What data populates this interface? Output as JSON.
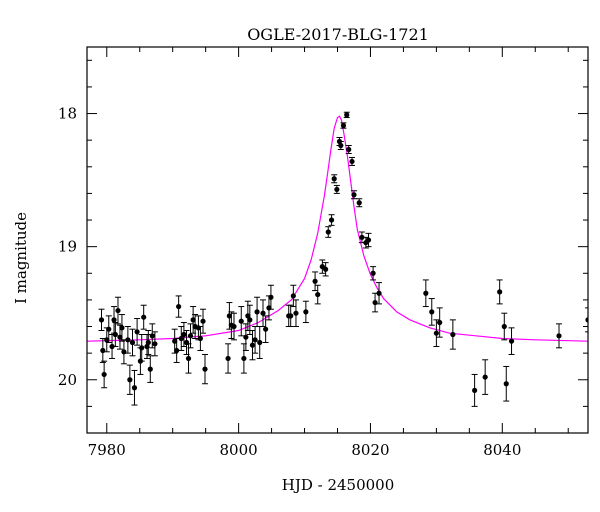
{
  "chart_data": {
    "type": "scatter",
    "title": "OGLE-2017-BLG-1721",
    "xlabel": "HJD - 2450000",
    "ylabel": "I magnitude",
    "xlim": [
      7977,
      8053
    ],
    "ylim": [
      20.4,
      17.5
    ],
    "y_inverted": true,
    "x_ticks": [
      7980,
      8000,
      8020,
      8040
    ],
    "y_ticks": [
      18,
      19,
      20
    ],
    "grid": false,
    "legend": "none",
    "colors": {
      "points": "#000000",
      "model": "#ff00ff",
      "frame": "#000000"
    },
    "series": [
      {
        "kind": "data",
        "x": [
          7979.2,
          7979.4,
          7979.6,
          7980.0,
          7980.3,
          7980.8,
          7981.1,
          7981.3,
          7981.7,
          7982.0,
          7982.3,
          7982.6,
          7983.2,
          7983.5,
          7983.9,
          7984.2,
          7984.6,
          7985.1,
          7985.3,
          7985.6,
          7986.1,
          7986.3,
          7986.6,
          7986.9,
          7987.3,
          7990.3,
          7990.6,
          7990.9,
          7991.3,
          7991.7,
          7992.1,
          7992.4,
          7992.7,
          7993.1,
          7993.4,
          7993.9,
          7994.2,
          7994.6,
          7994.9,
          7998.4,
          7998.6,
          7998.9,
          7999.3,
          8000.4,
          8000.8,
          8001.1,
          8001.4,
          8001.7,
          8002.1,
          8002.5,
          8002.8,
          8003.2,
          8003.7,
          8004.1,
          8004.6,
          8004.9,
          8007.6,
          8007.9,
          8008.3,
          8008.7,
          8010.2,
          8011.6,
          8012.0,
          8012.7,
          8013.2,
          8013.6,
          8014.1,
          8014.5,
          8014.9,
          8015.3,
          8015.5,
          8015.9,
          8016.4,
          8016.7,
          8017.2,
          8017.5,
          8018.3,
          8018.7,
          8019.3,
          8019.7,
          8020.4,
          8020.7,
          8021.3,
          8028.4,
          8029.3,
          8030.0,
          8030.5,
          8032.5,
          8035.8,
          8037.4,
          8039.6,
          8040.3,
          8040.6,
          8041.4,
          8048.6,
          8053.0
        ],
        "y": [
          19.55,
          19.78,
          19.96,
          19.7,
          19.62,
          19.75,
          19.55,
          19.66,
          19.48,
          19.68,
          19.61,
          19.79,
          19.7,
          20.0,
          19.72,
          20.06,
          19.64,
          19.86,
          19.76,
          19.53,
          19.75,
          19.72,
          19.92,
          19.67,
          19.73,
          19.71,
          19.78,
          19.45,
          19.69,
          19.66,
          19.72,
          19.84,
          19.67,
          19.55,
          19.6,
          19.61,
          19.69,
          19.56,
          19.92,
          19.84,
          19.52,
          19.59,
          19.6,
          19.56,
          19.84,
          19.68,
          19.52,
          19.55,
          19.74,
          19.7,
          19.49,
          19.72,
          19.5,
          19.62,
          19.46,
          19.38,
          19.52,
          19.52,
          19.37,
          19.5,
          19.49,
          19.26,
          19.36,
          19.15,
          19.17,
          18.89,
          18.8,
          18.49,
          18.57,
          18.21,
          18.24,
          18.09,
          18.01,
          18.27,
          18.36,
          18.61,
          18.67,
          18.93,
          18.97,
          18.95,
          19.2,
          19.42,
          19.35,
          19.35,
          19.49,
          19.65,
          19.57,
          19.66,
          20.08,
          19.98,
          19.34,
          19.6,
          20.03,
          19.71,
          19.67,
          19.55
        ],
        "err": [
          0.08,
          0.09,
          0.1,
          0.09,
          0.1,
          0.09,
          0.1,
          0.09,
          0.1,
          0.09,
          0.1,
          0.09,
          0.1,
          0.11,
          0.1,
          0.13,
          0.1,
          0.1,
          0.1,
          0.09,
          0.09,
          0.09,
          0.1,
          0.09,
          0.09,
          0.09,
          0.09,
          0.08,
          0.09,
          0.09,
          0.09,
          0.11,
          0.09,
          0.1,
          0.09,
          0.09,
          0.09,
          0.09,
          0.11,
          0.11,
          0.1,
          0.1,
          0.1,
          0.11,
          0.11,
          0.1,
          0.11,
          0.11,
          0.11,
          0.1,
          0.11,
          0.12,
          0.1,
          0.1,
          0.09,
          0.09,
          0.08,
          0.08,
          0.08,
          0.1,
          0.08,
          0.07,
          0.07,
          0.05,
          0.05,
          0.04,
          0.04,
          0.03,
          0.03,
          0.03,
          0.03,
          0.02,
          0.02,
          0.03,
          0.03,
          0.03,
          0.03,
          0.04,
          0.04,
          0.05,
          0.05,
          0.07,
          0.08,
          0.1,
          0.1,
          0.1,
          0.11,
          0.11,
          0.12,
          0.13,
          0.09,
          0.1,
          0.13,
          0.1,
          0.09,
          0.09
        ]
      },
      {
        "kind": "model",
        "x": [
          7977,
          7985,
          7990,
          7995,
          8000,
          8003,
          8006,
          8008,
          8010,
          8011,
          8012,
          8013,
          8013.5,
          8014,
          8014.5,
          8015,
          8015.3,
          8015.6,
          8016,
          8016.5,
          8017,
          8017.5,
          8018,
          8019,
          8020,
          8021,
          8022,
          8024,
          8026,
          8029,
          8032,
          8036,
          8040,
          8045,
          8053
        ],
        "y": [
          19.71,
          19.7,
          19.69,
          19.67,
          19.63,
          19.57,
          19.48,
          19.4,
          19.24,
          19.1,
          18.9,
          18.62,
          18.45,
          18.27,
          18.11,
          18.03,
          18.02,
          18.05,
          18.16,
          18.32,
          18.51,
          18.7,
          18.87,
          19.07,
          19.21,
          19.31,
          19.39,
          19.49,
          19.55,
          19.61,
          19.65,
          19.67,
          19.69,
          19.7,
          19.71
        ]
      }
    ]
  }
}
